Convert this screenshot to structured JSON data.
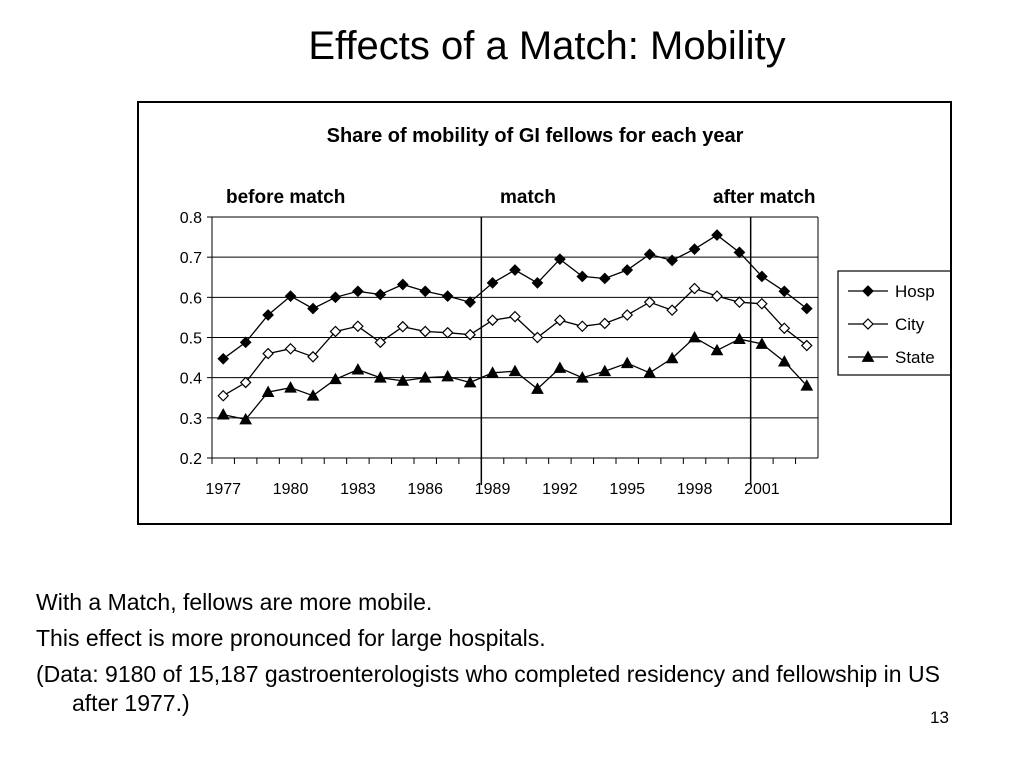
{
  "slide": {
    "title": "Effects of a Match: Mobility",
    "bullets": [
      "With a Match, fellows are more mobile.",
      "This effect is more pronounced for large hospitals.",
      "(Data: 9180 of 15,187 gastroenterologists who completed residency and fellowship in US after 1977.)"
    ],
    "page_number": "13"
  },
  "chart_data": {
    "type": "line",
    "title": "Share of mobility of GI fellows for each year",
    "annotations": [
      "before match",
      "match",
      "after match"
    ],
    "x": [
      1977,
      1978,
      1979,
      1980,
      1981,
      1982,
      1983,
      1984,
      1985,
      1986,
      1987,
      1988,
      1989,
      1990,
      1991,
      1992,
      1993,
      1994,
      1995,
      1996,
      1997,
      1998,
      1999,
      2000,
      2001,
      2002,
      2003
    ],
    "x_tick_labels": [
      "1977",
      "1980",
      "1983",
      "1986",
      "1989",
      "1992",
      "1995",
      "1998",
      "2001"
    ],
    "x_tick_values": [
      1977,
      1980,
      1983,
      1986,
      1989,
      1992,
      1995,
      1998,
      2001
    ],
    "xlim": [
      1976.5,
      2003.5
    ],
    "ylim": [
      0.2,
      0.8
    ],
    "y_ticks": [
      "0.2",
      "0.3",
      "0.4",
      "0.5",
      "0.6",
      "0.7",
      "0.8"
    ],
    "grid": true,
    "legend_position": "right",
    "phase_dividers": [
      1988.5,
      2000.5
    ],
    "series": [
      {
        "name": "Hosp",
        "marker": "diamond-filled",
        "values": [
          0.447,
          0.488,
          0.556,
          0.603,
          0.572,
          0.6,
          0.615,
          0.607,
          0.632,
          0.615,
          0.603,
          0.588,
          0.636,
          0.668,
          0.636,
          0.695,
          0.652,
          0.647,
          0.668,
          0.707,
          0.692,
          0.72,
          0.755,
          0.712,
          0.652,
          0.615,
          0.572
        ]
      },
      {
        "name": "City",
        "marker": "diamond-open",
        "values": [
          0.355,
          0.388,
          0.46,
          0.472,
          0.452,
          0.515,
          0.528,
          0.488,
          0.527,
          0.515,
          0.512,
          0.507,
          0.543,
          0.552,
          0.5,
          0.543,
          0.528,
          0.535,
          0.556,
          0.588,
          0.568,
          0.622,
          0.603,
          0.588,
          0.584,
          0.523,
          0.48
        ]
      },
      {
        "name": "State",
        "marker": "triangle-filled",
        "values": [
          0.308,
          0.296,
          0.364,
          0.375,
          0.355,
          0.396,
          0.42,
          0.4,
          0.392,
          0.4,
          0.403,
          0.388,
          0.412,
          0.416,
          0.372,
          0.424,
          0.4,
          0.416,
          0.436,
          0.412,
          0.448,
          0.5,
          0.468,
          0.496,
          0.484,
          0.44,
          0.38
        ]
      }
    ]
  }
}
